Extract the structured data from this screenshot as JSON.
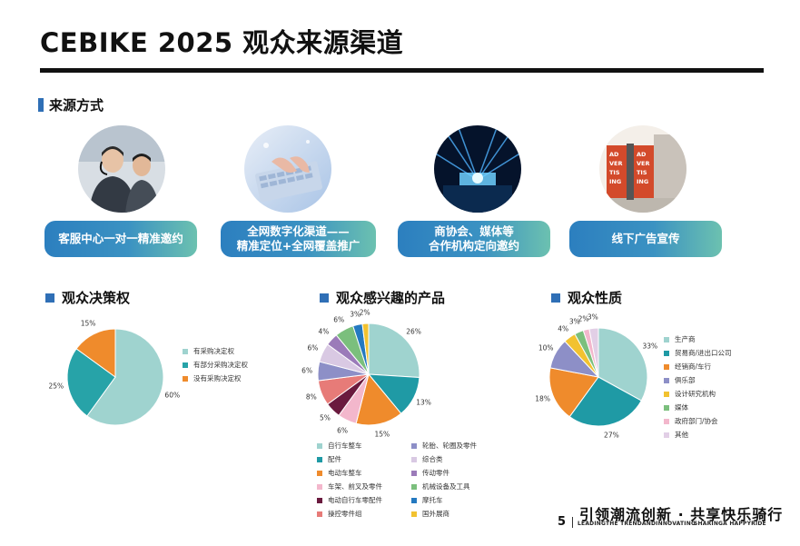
{
  "header": {
    "title": "CEBIKE 2025 观众来源渠道"
  },
  "source_section": {
    "heading": "来源方式",
    "channels": [
      {
        "label_line1": "客服中心一对一精准邀约",
        "label_line2": ""
      },
      {
        "label_line1": "全网数字化渠道——",
        "label_line2": "精准定位+全网覆盖推广"
      },
      {
        "label_line1": "商协会、媒体等",
        "label_line2": "合作机构定向邀约"
      },
      {
        "label_line1": "线下广告宣传",
        "label_line2": ""
      }
    ],
    "ad_board_text": "AD VER TIS ING"
  },
  "chart_data": [
    {
      "type": "pie",
      "title": "观众决策权",
      "legend_position": "right",
      "slices": [
        {
          "label": "有采购决定权",
          "value": 60,
          "color": "#9fd3cf"
        },
        {
          "label": "有部分采购决定权",
          "value": 25,
          "color": "#27a3a8"
        },
        {
          "label": "没有采购决定权",
          "value": 15,
          "color": "#ef8b2c"
        }
      ]
    },
    {
      "type": "pie",
      "title": "观众感兴趣的产品",
      "legend_position": "bottom",
      "slices": [
        {
          "label": "自行车整车",
          "value": 26,
          "color": "#9fd3cf"
        },
        {
          "label": "配件",
          "value": 13,
          "color": "#1f9aa5"
        },
        {
          "label": "电动车整车",
          "value": 15,
          "color": "#ef8b2c"
        },
        {
          "label": "车架、前叉及零件",
          "value": 6,
          "color": "#f3b7cc"
        },
        {
          "label": "电动自行车零配件",
          "value": 5,
          "color": "#6a1a3e"
        },
        {
          "label": "操控零件组",
          "value": 8,
          "color": "#e77b78"
        },
        {
          "label": "轮胎、轮圈及零件",
          "value": 6,
          "color": "#8d8fc7"
        },
        {
          "label": "综合类",
          "value": 6,
          "color": "#d9c9e3"
        },
        {
          "label": "传动零件",
          "value": 4,
          "color": "#9b7bb9"
        },
        {
          "label": "机械设备及工具",
          "value": 6,
          "color": "#7bbf7d"
        },
        {
          "label": "摩托车",
          "value": 3,
          "color": "#2479c0"
        },
        {
          "label": "国外展商",
          "value": 2,
          "color": "#f2c230"
        }
      ]
    },
    {
      "type": "pie",
      "title": "观众性质",
      "legend_position": "right",
      "slices": [
        {
          "label": "生产商",
          "value": 33,
          "color": "#9fd3cf"
        },
        {
          "label": "贸易商/进出口公司",
          "value": 27,
          "color": "#1f9aa5"
        },
        {
          "label": "经销商/车行",
          "value": 18,
          "color": "#ef8b2c"
        },
        {
          "label": "俱乐部",
          "value": 10,
          "color": "#8d8fc7"
        },
        {
          "label": "设计研究机构",
          "value": 4,
          "color": "#f2c230"
        },
        {
          "label": "媒体",
          "value": 3,
          "color": "#7bbf7d"
        },
        {
          "label": "政府部门/协会",
          "value": 2,
          "color": "#f3b7cc"
        },
        {
          "label": "其他",
          "value": 3,
          "color": "#e2cfe6"
        }
      ]
    }
  ],
  "footer": {
    "page_number": "5",
    "slogan": "引领潮流创新 · 共享快乐骑行",
    "sub_left": "LEADINGTHE TRENDANDINNOVATING",
    "sub_right": "SHARINGA HAPPYRIDE"
  }
}
